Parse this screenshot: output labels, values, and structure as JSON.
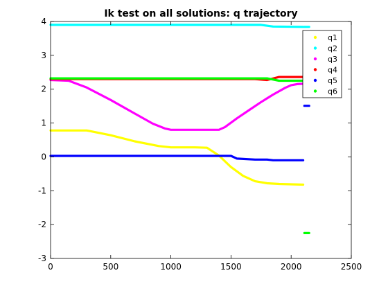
{
  "chart_data": {
    "type": "scatter",
    "title": "Ik test on all solutions: q trajectory",
    "xlabel": "",
    "ylabel": "",
    "xlim": [
      0,
      2500
    ],
    "ylim": [
      -3,
      4
    ],
    "x_ticks": [
      0,
      500,
      1000,
      1500,
      2000,
      2500
    ],
    "y_ticks": [
      -3,
      -2,
      -1,
      0,
      1,
      2,
      3,
      4
    ],
    "grid": false,
    "legend_position": "top-right",
    "series": [
      {
        "name": "q1",
        "color": "#ffff00",
        "segments": [
          [
            [
              0,
              0.78
            ],
            [
              300,
              0.78
            ],
            [
              500,
              0.64
            ],
            [
              700,
              0.46
            ],
            [
              900,
              0.32
            ],
            [
              1000,
              0.28
            ],
            [
              1200,
              0.28
            ],
            [
              1300,
              0.27
            ],
            [
              1400,
              0.04
            ],
            [
              1500,
              -0.3
            ],
            [
              1600,
              -0.56
            ],
            [
              1700,
              -0.72
            ],
            [
              1800,
              -0.78
            ],
            [
              1900,
              -0.8
            ],
            [
              2100,
              -0.82
            ]
          ]
        ]
      },
      {
        "name": "q2",
        "color": "#00ffff",
        "segments": [
          [
            [
              0,
              3.9
            ],
            [
              1750,
              3.9
            ],
            [
              1850,
              3.85
            ],
            [
              2100,
              3.84
            ]
          ],
          [
            [
              2110,
              3.84
            ],
            [
              2150,
              3.84
            ]
          ]
        ]
      },
      {
        "name": "q3",
        "color": "#ff00ff",
        "segments": [
          [
            [
              0,
              2.27
            ],
            [
              150,
              2.25
            ],
            [
              300,
              2.05
            ],
            [
              500,
              1.68
            ],
            [
              700,
              1.28
            ],
            [
              850,
              0.98
            ],
            [
              950,
              0.84
            ],
            [
              1000,
              0.8
            ],
            [
              1400,
              0.8
            ],
            [
              1450,
              0.88
            ],
            [
              1550,
              1.14
            ],
            [
              1650,
              1.38
            ],
            [
              1750,
              1.62
            ],
            [
              1850,
              1.84
            ],
            [
              1950,
              2.04
            ],
            [
              2000,
              2.12
            ],
            [
              2050,
              2.15
            ],
            [
              2100,
              2.16
            ]
          ]
        ]
      },
      {
        "name": "q4",
        "color": "#ff0000",
        "segments": [
          [
            [
              0,
              2.3
            ],
            [
              1700,
              2.3
            ],
            [
              1800,
              2.27
            ],
            [
              1900,
              2.36
            ],
            [
              2100,
              2.36
            ]
          ],
          [
            [
              2110,
              2.35
            ],
            [
              2150,
              2.35
            ]
          ]
        ]
      },
      {
        "name": "q5",
        "color": "#0000ff",
        "segments": [
          [
            [
              0,
              0.03
            ],
            [
              1500,
              0.03
            ],
            [
              1550,
              -0.05
            ],
            [
              1700,
              -0.08
            ],
            [
              1800,
              -0.08
            ],
            [
              1850,
              -0.1
            ],
            [
              2100,
              -0.1
            ]
          ],
          [
            [
              2110,
              1.51
            ],
            [
              2150,
              1.51
            ]
          ]
        ]
      },
      {
        "name": "q6",
        "color": "#00ff00",
        "segments": [
          [
            [
              0,
              2.32
            ],
            [
              1700,
              2.32
            ],
            [
              1800,
              2.32
            ],
            [
              1900,
              2.25
            ],
            [
              2100,
              2.25
            ]
          ],
          [
            [
              2110,
              -2.25
            ],
            [
              2150,
              -2.25
            ]
          ]
        ]
      }
    ]
  }
}
